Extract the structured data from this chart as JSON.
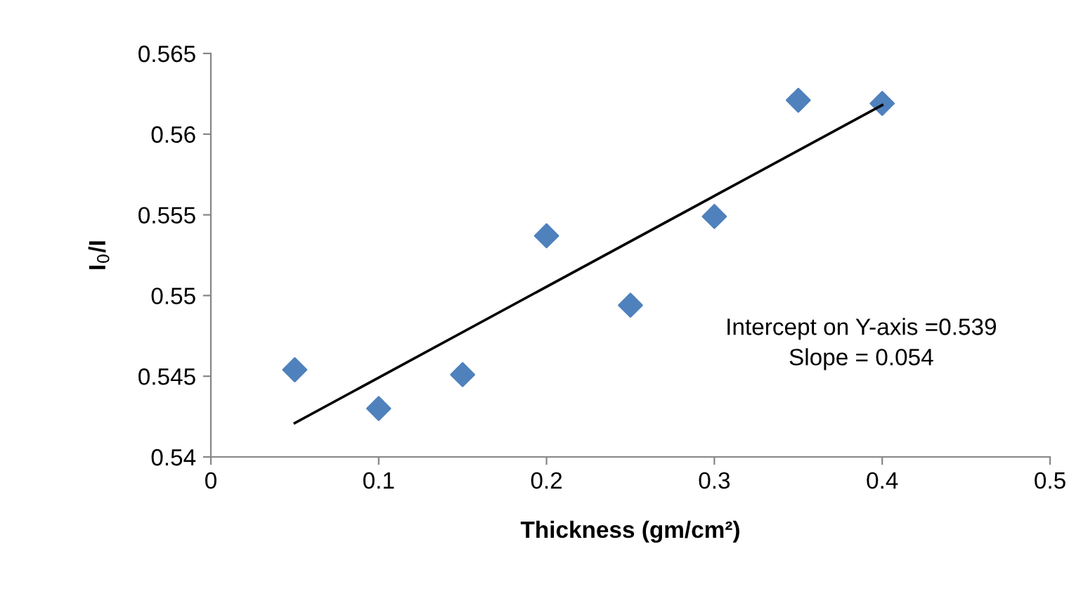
{
  "chart_data": {
    "type": "scatter",
    "xlabel": "Thickness (gm/cm²)",
    "ylabel": "I$_{0}$/I",
    "x": [
      0.05,
      0.1,
      0.15,
      0.2,
      0.25,
      0.3,
      0.35,
      0.4
    ],
    "series": [
      {
        "color": "#4f81bd",
        "marker": "diamond",
        "values": [
          0.5454,
          0.543,
          0.5451,
          0.5537,
          0.5494,
          0.5549,
          0.5621,
          0.5619
        ]
      },
      {
        "type": "line",
        "color": "#000000",
        "marker": "none",
        "line_style": "solid",
        "x": [
          0.05,
          0.4
        ],
        "values": [
          0.5421,
          0.5618
        ]
      }
    ],
    "annotations": [
      "Intercept on Y-axis =0.539\nSlope = 0.054"
    ],
    "xlim": [
      0,
      0.5
    ],
    "xticks": [
      0,
      0.1,
      0.2,
      0.3,
      0.4,
      0.5
    ],
    "ylim": [
      0.54,
      0.565
    ],
    "yticks": [
      0.54,
      0.545,
      0.55,
      0.555,
      0.56,
      0.565
    ],
    "grid": false,
    "legend": false
  }
}
